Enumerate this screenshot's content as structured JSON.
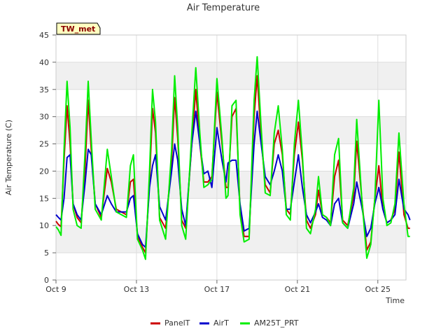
{
  "chart_data": {
    "type": "line",
    "title": "Air Temperature",
    "xlabel": "Time",
    "ylabel": "Air Temperature (C)",
    "station": "TW_met",
    "ylim": [
      0,
      45
    ],
    "yticks": [
      0,
      5,
      10,
      15,
      20,
      25,
      30,
      35,
      40,
      45
    ],
    "xlim": [
      0,
      17.4
    ],
    "xticks": [
      {
        "day": 0,
        "label": "Oct 9"
      },
      {
        "day": 4,
        "label": "Oct 13"
      },
      {
        "day": 8,
        "label": "Oct 17"
      },
      {
        "day": 12,
        "label": "Oct 21"
      },
      {
        "day": 16,
        "label": "Oct 25"
      }
    ],
    "grid": true,
    "legend_position": "bottom",
    "colors": {
      "PanelT": "#cc0000",
      "AirT": "#0000cc",
      "AM25T_PRT": "#00ee00",
      "band": "#f0f0f0"
    },
    "series": [
      {
        "name": "PanelT",
        "color": "#cc0000",
        "points": [
          [
            0,
            10.8
          ],
          [
            0.12,
            10.2
          ],
          [
            0.25,
            9.8
          ],
          [
            0.4,
            22
          ],
          [
            0.55,
            32
          ],
          [
            0.7,
            25
          ],
          [
            0.85,
            14
          ],
          [
            1.05,
            11.5
          ],
          [
            1.25,
            10.5
          ],
          [
            1.45,
            21
          ],
          [
            1.6,
            33
          ],
          [
            1.75,
            24
          ],
          [
            1.95,
            14
          ],
          [
            2.25,
            11.5
          ],
          [
            2.55,
            20.5
          ],
          [
            2.75,
            18
          ],
          [
            3.0,
            13
          ],
          [
            3.5,
            12
          ],
          [
            3.7,
            18
          ],
          [
            3.85,
            18.5
          ],
          [
            4.05,
            8
          ],
          [
            4.3,
            6
          ],
          [
            4.45,
            5
          ],
          [
            4.65,
            18
          ],
          [
            4.8,
            31.5
          ],
          [
            4.95,
            27
          ],
          [
            5.15,
            11.5
          ],
          [
            5.45,
            9.5
          ],
          [
            5.75,
            22
          ],
          [
            5.9,
            33.5
          ],
          [
            6.05,
            26
          ],
          [
            6.25,
            11
          ],
          [
            6.45,
            9.5
          ],
          [
            6.75,
            25
          ],
          [
            6.95,
            35
          ],
          [
            7.15,
            25
          ],
          [
            7.35,
            18
          ],
          [
            7.55,
            18
          ],
          [
            7.75,
            19
          ],
          [
            8.0,
            34.5
          ],
          [
            8.25,
            25
          ],
          [
            8.45,
            17
          ],
          [
            8.55,
            17
          ],
          [
            8.75,
            30
          ],
          [
            8.95,
            31.5
          ],
          [
            9.15,
            13
          ],
          [
            9.35,
            8
          ],
          [
            9.6,
            8
          ],
          [
            9.85,
            30
          ],
          [
            10.0,
            37.5
          ],
          [
            10.2,
            26
          ],
          [
            10.4,
            17.5
          ],
          [
            10.65,
            16
          ],
          [
            10.85,
            25
          ],
          [
            11.05,
            27.5
          ],
          [
            11.25,
            23
          ],
          [
            11.45,
            13
          ],
          [
            11.65,
            12
          ],
          [
            11.85,
            23
          ],
          [
            12.05,
            29
          ],
          [
            12.25,
            22
          ],
          [
            12.45,
            11
          ],
          [
            12.65,
            9.5
          ],
          [
            12.9,
            12
          ],
          [
            13.05,
            16.5
          ],
          [
            13.25,
            12
          ],
          [
            13.45,
            11.5
          ],
          [
            13.65,
            10.5
          ],
          [
            13.85,
            19
          ],
          [
            14.05,
            22
          ],
          [
            14.25,
            11
          ],
          [
            14.5,
            10
          ],
          [
            14.8,
            15.5
          ],
          [
            14.95,
            25.5
          ],
          [
            15.2,
            15
          ],
          [
            15.45,
            5.5
          ],
          [
            15.65,
            7
          ],
          [
            15.85,
            15
          ],
          [
            16.05,
            21
          ],
          [
            16.25,
            13
          ],
          [
            16.45,
            10.5
          ],
          [
            16.65,
            11
          ],
          [
            16.85,
            13
          ],
          [
            17.05,
            23.5
          ],
          [
            17.3,
            12
          ],
          [
            17.5,
            9.5
          ],
          [
            17.6,
            9.5
          ]
        ]
      },
      {
        "name": "AirT",
        "color": "#0000cc",
        "points": [
          [
            0,
            12
          ],
          [
            0.12,
            11.5
          ],
          [
            0.25,
            11
          ],
          [
            0.4,
            15
          ],
          [
            0.55,
            22.5
          ],
          [
            0.7,
            23
          ],
          [
            0.85,
            14
          ],
          [
            1.05,
            12
          ],
          [
            1.25,
            11
          ],
          [
            1.45,
            18
          ],
          [
            1.6,
            24
          ],
          [
            1.75,
            23
          ],
          [
            1.95,
            14
          ],
          [
            2.25,
            12
          ],
          [
            2.55,
            15.5
          ],
          [
            2.75,
            14
          ],
          [
            3.0,
            12.5
          ],
          [
            3.5,
            12.5
          ],
          [
            3.7,
            15
          ],
          [
            3.85,
            15.5
          ],
          [
            4.05,
            8.5
          ],
          [
            4.3,
            6.5
          ],
          [
            4.45,
            6
          ],
          [
            4.65,
            17
          ],
          [
            4.8,
            21
          ],
          [
            4.95,
            23
          ],
          [
            5.15,
            13.5
          ],
          [
            5.45,
            11
          ],
          [
            5.75,
            20
          ],
          [
            5.9,
            25
          ],
          [
            6.05,
            22
          ],
          [
            6.25,
            13
          ],
          [
            6.45,
            10
          ],
          [
            6.75,
            25
          ],
          [
            6.95,
            31
          ],
          [
            7.15,
            25
          ],
          [
            7.35,
            19.5
          ],
          [
            7.55,
            20
          ],
          [
            7.75,
            17
          ],
          [
            8.0,
            28
          ],
          [
            8.25,
            22
          ],
          [
            8.45,
            18
          ],
          [
            8.55,
            21.5
          ],
          [
            8.75,
            22
          ],
          [
            8.95,
            22
          ],
          [
            9.15,
            14
          ],
          [
            9.35,
            9
          ],
          [
            9.6,
            9.5
          ],
          [
            9.85,
            25
          ],
          [
            10.0,
            31
          ],
          [
            10.2,
            25
          ],
          [
            10.4,
            19
          ],
          [
            10.65,
            17.5
          ],
          [
            10.85,
            20
          ],
          [
            11.05,
            23
          ],
          [
            11.25,
            20
          ],
          [
            11.45,
            13
          ],
          [
            11.65,
            13
          ],
          [
            11.85,
            18
          ],
          [
            12.05,
            23
          ],
          [
            12.25,
            17
          ],
          [
            12.45,
            12
          ],
          [
            12.65,
            10.5
          ],
          [
            12.9,
            12.5
          ],
          [
            13.05,
            14
          ],
          [
            13.25,
            11.5
          ],
          [
            13.45,
            11
          ],
          [
            13.65,
            10
          ],
          [
            13.85,
            14
          ],
          [
            14.05,
            15
          ],
          [
            14.25,
            10.5
          ],
          [
            14.5,
            9.5
          ],
          [
            14.8,
            14
          ],
          [
            14.95,
            18
          ],
          [
            15.2,
            13.5
          ],
          [
            15.45,
            8
          ],
          [
            15.65,
            9.5
          ],
          [
            15.85,
            14
          ],
          [
            16.05,
            17
          ],
          [
            16.25,
            13
          ],
          [
            16.45,
            10.5
          ],
          [
            16.65,
            11
          ],
          [
            16.85,
            12
          ],
          [
            17.05,
            18.5
          ],
          [
            17.3,
            13
          ],
          [
            17.5,
            12
          ],
          [
            17.6,
            11
          ]
        ]
      },
      {
        "name": "AM25T_PRT",
        "color": "#00ee00",
        "points": [
          [
            0,
            9.8
          ],
          [
            0.12,
            9.2
          ],
          [
            0.25,
            8.2
          ],
          [
            0.4,
            24
          ],
          [
            0.55,
            36.5
          ],
          [
            0.7,
            28
          ],
          [
            0.85,
            13
          ],
          [
            1.05,
            10
          ],
          [
            1.25,
            9.5
          ],
          [
            1.45,
            24
          ],
          [
            1.6,
            36.5
          ],
          [
            1.75,
            26
          ],
          [
            1.95,
            13
          ],
          [
            2.25,
            11
          ],
          [
            2.55,
            24
          ],
          [
            2.75,
            19
          ],
          [
            3.0,
            12.5
          ],
          [
            3.5,
            11.5
          ],
          [
            3.7,
            21
          ],
          [
            3.85,
            23
          ],
          [
            4.05,
            7.5
          ],
          [
            4.3,
            5.5
          ],
          [
            4.45,
            3.8
          ],
          [
            4.65,
            20
          ],
          [
            4.8,
            35
          ],
          [
            4.95,
            29
          ],
          [
            5.15,
            11
          ],
          [
            5.45,
            7.5
          ],
          [
            5.75,
            24
          ],
          [
            5.9,
            37.5
          ],
          [
            6.05,
            28
          ],
          [
            6.25,
            10
          ],
          [
            6.45,
            7.5
          ],
          [
            6.75,
            27
          ],
          [
            6.95,
            39
          ],
          [
            7.15,
            27
          ],
          [
            7.35,
            17
          ],
          [
            7.55,
            17.5
          ],
          [
            7.75,
            18.5
          ],
          [
            8.0,
            37
          ],
          [
            8.25,
            26
          ],
          [
            8.45,
            15
          ],
          [
            8.55,
            15.5
          ],
          [
            8.75,
            32
          ],
          [
            8.95,
            33
          ],
          [
            9.15,
            12
          ],
          [
            9.35,
            7
          ],
          [
            9.6,
            7.5
          ],
          [
            9.85,
            33
          ],
          [
            10.0,
            41
          ],
          [
            10.2,
            28
          ],
          [
            10.4,
            16
          ],
          [
            10.65,
            15.5
          ],
          [
            10.85,
            27
          ],
          [
            11.05,
            32
          ],
          [
            11.25,
            24
          ],
          [
            11.45,
            12
          ],
          [
            11.65,
            11
          ],
          [
            11.85,
            25
          ],
          [
            12.05,
            33
          ],
          [
            12.25,
            23
          ],
          [
            12.45,
            9.5
          ],
          [
            12.65,
            8.5
          ],
          [
            12.9,
            13
          ],
          [
            13.05,
            19
          ],
          [
            13.25,
            12
          ],
          [
            13.45,
            11.5
          ],
          [
            13.65,
            10
          ],
          [
            13.85,
            23
          ],
          [
            14.05,
            26
          ],
          [
            14.25,
            10.5
          ],
          [
            14.5,
            9.5
          ],
          [
            14.8,
            17
          ],
          [
            14.95,
            29.5
          ],
          [
            15.2,
            15
          ],
          [
            15.45,
            4
          ],
          [
            15.65,
            6.5
          ],
          [
            15.85,
            15
          ],
          [
            16.05,
            33
          ],
          [
            16.25,
            15
          ],
          [
            16.45,
            10
          ],
          [
            16.65,
            10.5
          ],
          [
            16.85,
            14
          ],
          [
            17.05,
            27
          ],
          [
            17.3,
            14
          ],
          [
            17.5,
            8
          ],
          [
            17.6,
            8
          ]
        ]
      }
    ]
  }
}
